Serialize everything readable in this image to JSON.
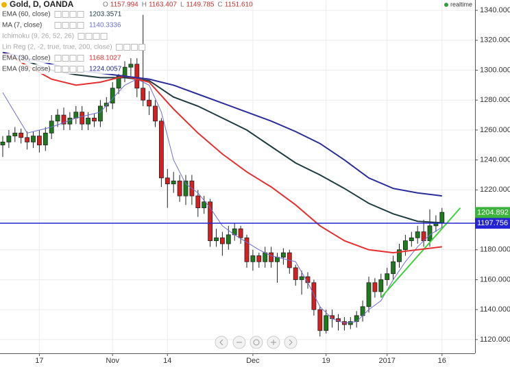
{
  "chart_data": {
    "type": "candlestick",
    "title": "Gold, D, OANDA",
    "readout": [
      {
        "key": "O",
        "value": 1157.994
      },
      {
        "key": "H",
        "value": 1163.407
      },
      {
        "key": "L",
        "value": 1149.785
      },
      {
        "key": "C",
        "value": 1151.61,
        "label": "1151.610"
      }
    ],
    "status": "realtime",
    "categories": [
      null,
      null,
      null,
      null,
      null,
      null,
      "17",
      null,
      null,
      null,
      null,
      null,
      null,
      null,
      null,
      null,
      null,
      null,
      "Nov",
      null,
      null,
      null,
      null,
      null,
      null,
      null,
      null,
      "14",
      null,
      null,
      null,
      null,
      null,
      null,
      null,
      null,
      null,
      null,
      null,
      null,
      null,
      "Dec",
      null,
      null,
      null,
      null,
      null,
      null,
      null,
      null,
      null,
      null,
      null,
      "19",
      null,
      null,
      null,
      null,
      null,
      null,
      null,
      null,
      null,
      "2017",
      null,
      null,
      null,
      null,
      null,
      null,
      null,
      null,
      "16"
    ],
    "open": [
      1250,
      1252,
      1256,
      1258,
      1255,
      1252,
      1256,
      1250,
      1258,
      1266,
      1270,
      1264,
      1268,
      1272,
      1264,
      1268,
      1266,
      1276,
      1278,
      1288,
      1296,
      1302,
      1304,
      1288,
      1280,
      1276,
      1266,
      1228,
      1224,
      1226,
      1216,
      1226,
      1216,
      1208,
      1212,
      1186,
      1188,
      1184,
      1190,
      1194,
      1188,
      1172,
      1176,
      1172,
      1178,
      1172,
      1175,
      1178,
      1168,
      1160,
      1162,
      1158,
      1140,
      1126,
      1136,
      1134,
      1132,
      1130,
      1132,
      1136,
      1142,
      1158,
      1152,
      1160,
      1164,
      1172,
      1180,
      1186,
      1188,
      1192,
      1186,
      1196,
      1198
    ],
    "high": [
      1256,
      1260,
      1262,
      1261,
      1259,
      1259,
      1260,
      1262,
      1270,
      1274,
      1275,
      1272,
      1276,
      1276,
      1272,
      1271,
      1280,
      1282,
      1292,
      1300,
      1306,
      1308,
      1308,
      1337,
      1286,
      1280,
      1268,
      1234,
      1232,
      1230,
      1230,
      1230,
      1220,
      1216,
      1214,
      1194,
      1192,
      1196,
      1198,
      1196,
      1190,
      1180,
      1178,
      1182,
      1182,
      1178,
      1181,
      1180,
      1170,
      1166,
      1165,
      1160,
      1142,
      1140,
      1140,
      1137,
      1135,
      1135,
      1139,
      1146,
      1162,
      1161,
      1164,
      1168,
      1176,
      1184,
      1190,
      1192,
      1196,
      1200,
      1207,
      1203,
      1208
    ],
    "low": [
      1242,
      1248,
      1252,
      1251,
      1247,
      1248,
      1245,
      1246,
      1254,
      1262,
      1260,
      1260,
      1264,
      1260,
      1260,
      1262,
      1262,
      1272,
      1274,
      1284,
      1292,
      1296,
      1282,
      1276,
      1270,
      1262,
      1222,
      1208,
      1218,
      1212,
      1210,
      1210,
      1202,
      1204,
      1182,
      1182,
      1176,
      1180,
      1186,
      1184,
      1168,
      1166,
      1168,
      1168,
      1168,
      1158,
      1170,
      1164,
      1156,
      1150,
      1154,
      1136,
      1122,
      1124,
      1128,
      1126,
      1126,
      1127,
      1128,
      1132,
      1138,
      1148,
      1148,
      1156,
      1160,
      1168,
      1176,
      1182,
      1184,
      1182,
      1182,
      1192,
      1194
    ],
    "close": [
      1252,
      1256,
      1258,
      1255,
      1252,
      1256,
      1250,
      1258,
      1266,
      1270,
      1264,
      1268,
      1272,
      1264,
      1268,
      1266,
      1276,
      1278,
      1288,
      1296,
      1302,
      1304,
      1288,
      1280,
      1276,
      1266,
      1228,
      1224,
      1226,
      1216,
      1226,
      1216,
      1208,
      1212,
      1186,
      1188,
      1184,
      1190,
      1194,
      1188,
      1172,
      1176,
      1172,
      1178,
      1172,
      1175,
      1178,
      1168,
      1160,
      1162,
      1158,
      1140,
      1126,
      1136,
      1134,
      1132,
      1130,
      1132,
      1136,
      1142,
      1158,
      1152,
      1160,
      1164,
      1172,
      1180,
      1186,
      1188,
      1192,
      1186,
      1196,
      1198,
      1205
    ],
    "up_color": "#1d7a1d",
    "down_color": "#d42020",
    "indicators": [
      {
        "name": "EMA (60, close)",
        "legend_value": 1203.3571,
        "color": "#1f3b3e",
        "x": [
          0,
          4,
          8,
          12,
          16,
          20,
          24,
          28,
          32,
          36,
          40,
          44,
          48,
          52,
          56,
          60,
          64,
          68,
          72
        ],
        "values": [
          1310,
          1306,
          1300,
          1297,
          1295,
          1295,
          1293,
          1282,
          1276,
          1268,
          1260,
          1249,
          1238,
          1230,
          1221,
          1211,
          1204,
          1199,
          1198
        ]
      },
      {
        "name": "MA (7, close)",
        "legend_value": 1140.3336,
        "color": "#6f6fd0",
        "x": [
          0,
          4,
          8,
          12,
          16,
          20,
          22,
          24,
          26,
          28,
          30,
          32,
          34,
          36,
          38,
          40,
          42,
          44,
          46,
          48,
          50,
          52,
          54,
          56,
          58,
          60,
          62,
          64,
          66,
          68,
          70,
          72
        ],
        "values": [
          1285,
          1258,
          1262,
          1268,
          1272,
          1290,
          1294,
          1290,
          1272,
          1240,
          1224,
          1218,
          1208,
          1196,
          1190,
          1185,
          1180,
          1176,
          1174,
          1172,
          1158,
          1142,
          1134,
          1131,
          1132,
          1140,
          1146,
          1160,
          1172,
          1182,
          1190,
          1195
        ]
      },
      {
        "name": "Ichimoku (9, 26, 52, 26)",
        "color": "#9a9a9a"
      },
      {
        "name": "Lin Reg (2, -2, true, true, 200, close)",
        "color": "#3ad43a",
        "x": [
          62,
          75
        ],
        "values": [
          1148,
          1208
        ]
      },
      {
        "name": "EMA (30, close)",
        "legend_value": 1168.1027,
        "color": "#e52e2e",
        "x": [
          0,
          4,
          8,
          12,
          16,
          20,
          24,
          28,
          32,
          36,
          40,
          44,
          48,
          52,
          56,
          60,
          64,
          68,
          72
        ],
        "values": [
          1312,
          1303,
          1294,
          1290,
          1292,
          1296,
          1292,
          1274,
          1258,
          1244,
          1232,
          1222,
          1210,
          1196,
          1186,
          1180,
          1178,
          1180,
          1182
        ]
      },
      {
        "name": "EMA (89, close)",
        "legend_value": 1224.0057,
        "color": "#2b2b9b",
        "x": [
          0,
          4,
          8,
          12,
          16,
          20,
          24,
          28,
          32,
          36,
          40,
          44,
          48,
          52,
          56,
          60,
          64,
          68,
          72
        ],
        "values": [
          1312,
          1308,
          1304,
          1300,
          1298,
          1296,
          1294,
          1290,
          1284,
          1278,
          1272,
          1266,
          1259,
          1251,
          1240,
          1228,
          1221,
          1218,
          1216
        ]
      }
    ],
    "last_price": 1204.892,
    "last_price_color": "#3cb43c",
    "hline": {
      "value": 1197.756,
      "color": "#2424d4"
    },
    "ylim": [
      1110.8,
      1346.9
    ],
    "yticks": [
      {
        "value": 1120,
        "label": "1120.000"
      },
      {
        "value": 1140,
        "label": "1140.000"
      },
      {
        "value": 1160,
        "label": "1160.000"
      },
      {
        "value": 1180,
        "label": "1180.000"
      },
      {
        "value": 1200,
        "label": "1200.000"
      },
      {
        "value": 1220,
        "label": "1220.000"
      },
      {
        "value": 1240,
        "label": "1240.000"
      },
      {
        "value": 1260,
        "label": "1260.000"
      },
      {
        "value": 1280,
        "label": "1280.000"
      },
      {
        "value": 1300,
        "label": "1300.000"
      },
      {
        "value": 1320,
        "label": "1320.000"
      },
      {
        "value": 1340,
        "label": "1340.000"
      }
    ],
    "grid": true
  }
}
